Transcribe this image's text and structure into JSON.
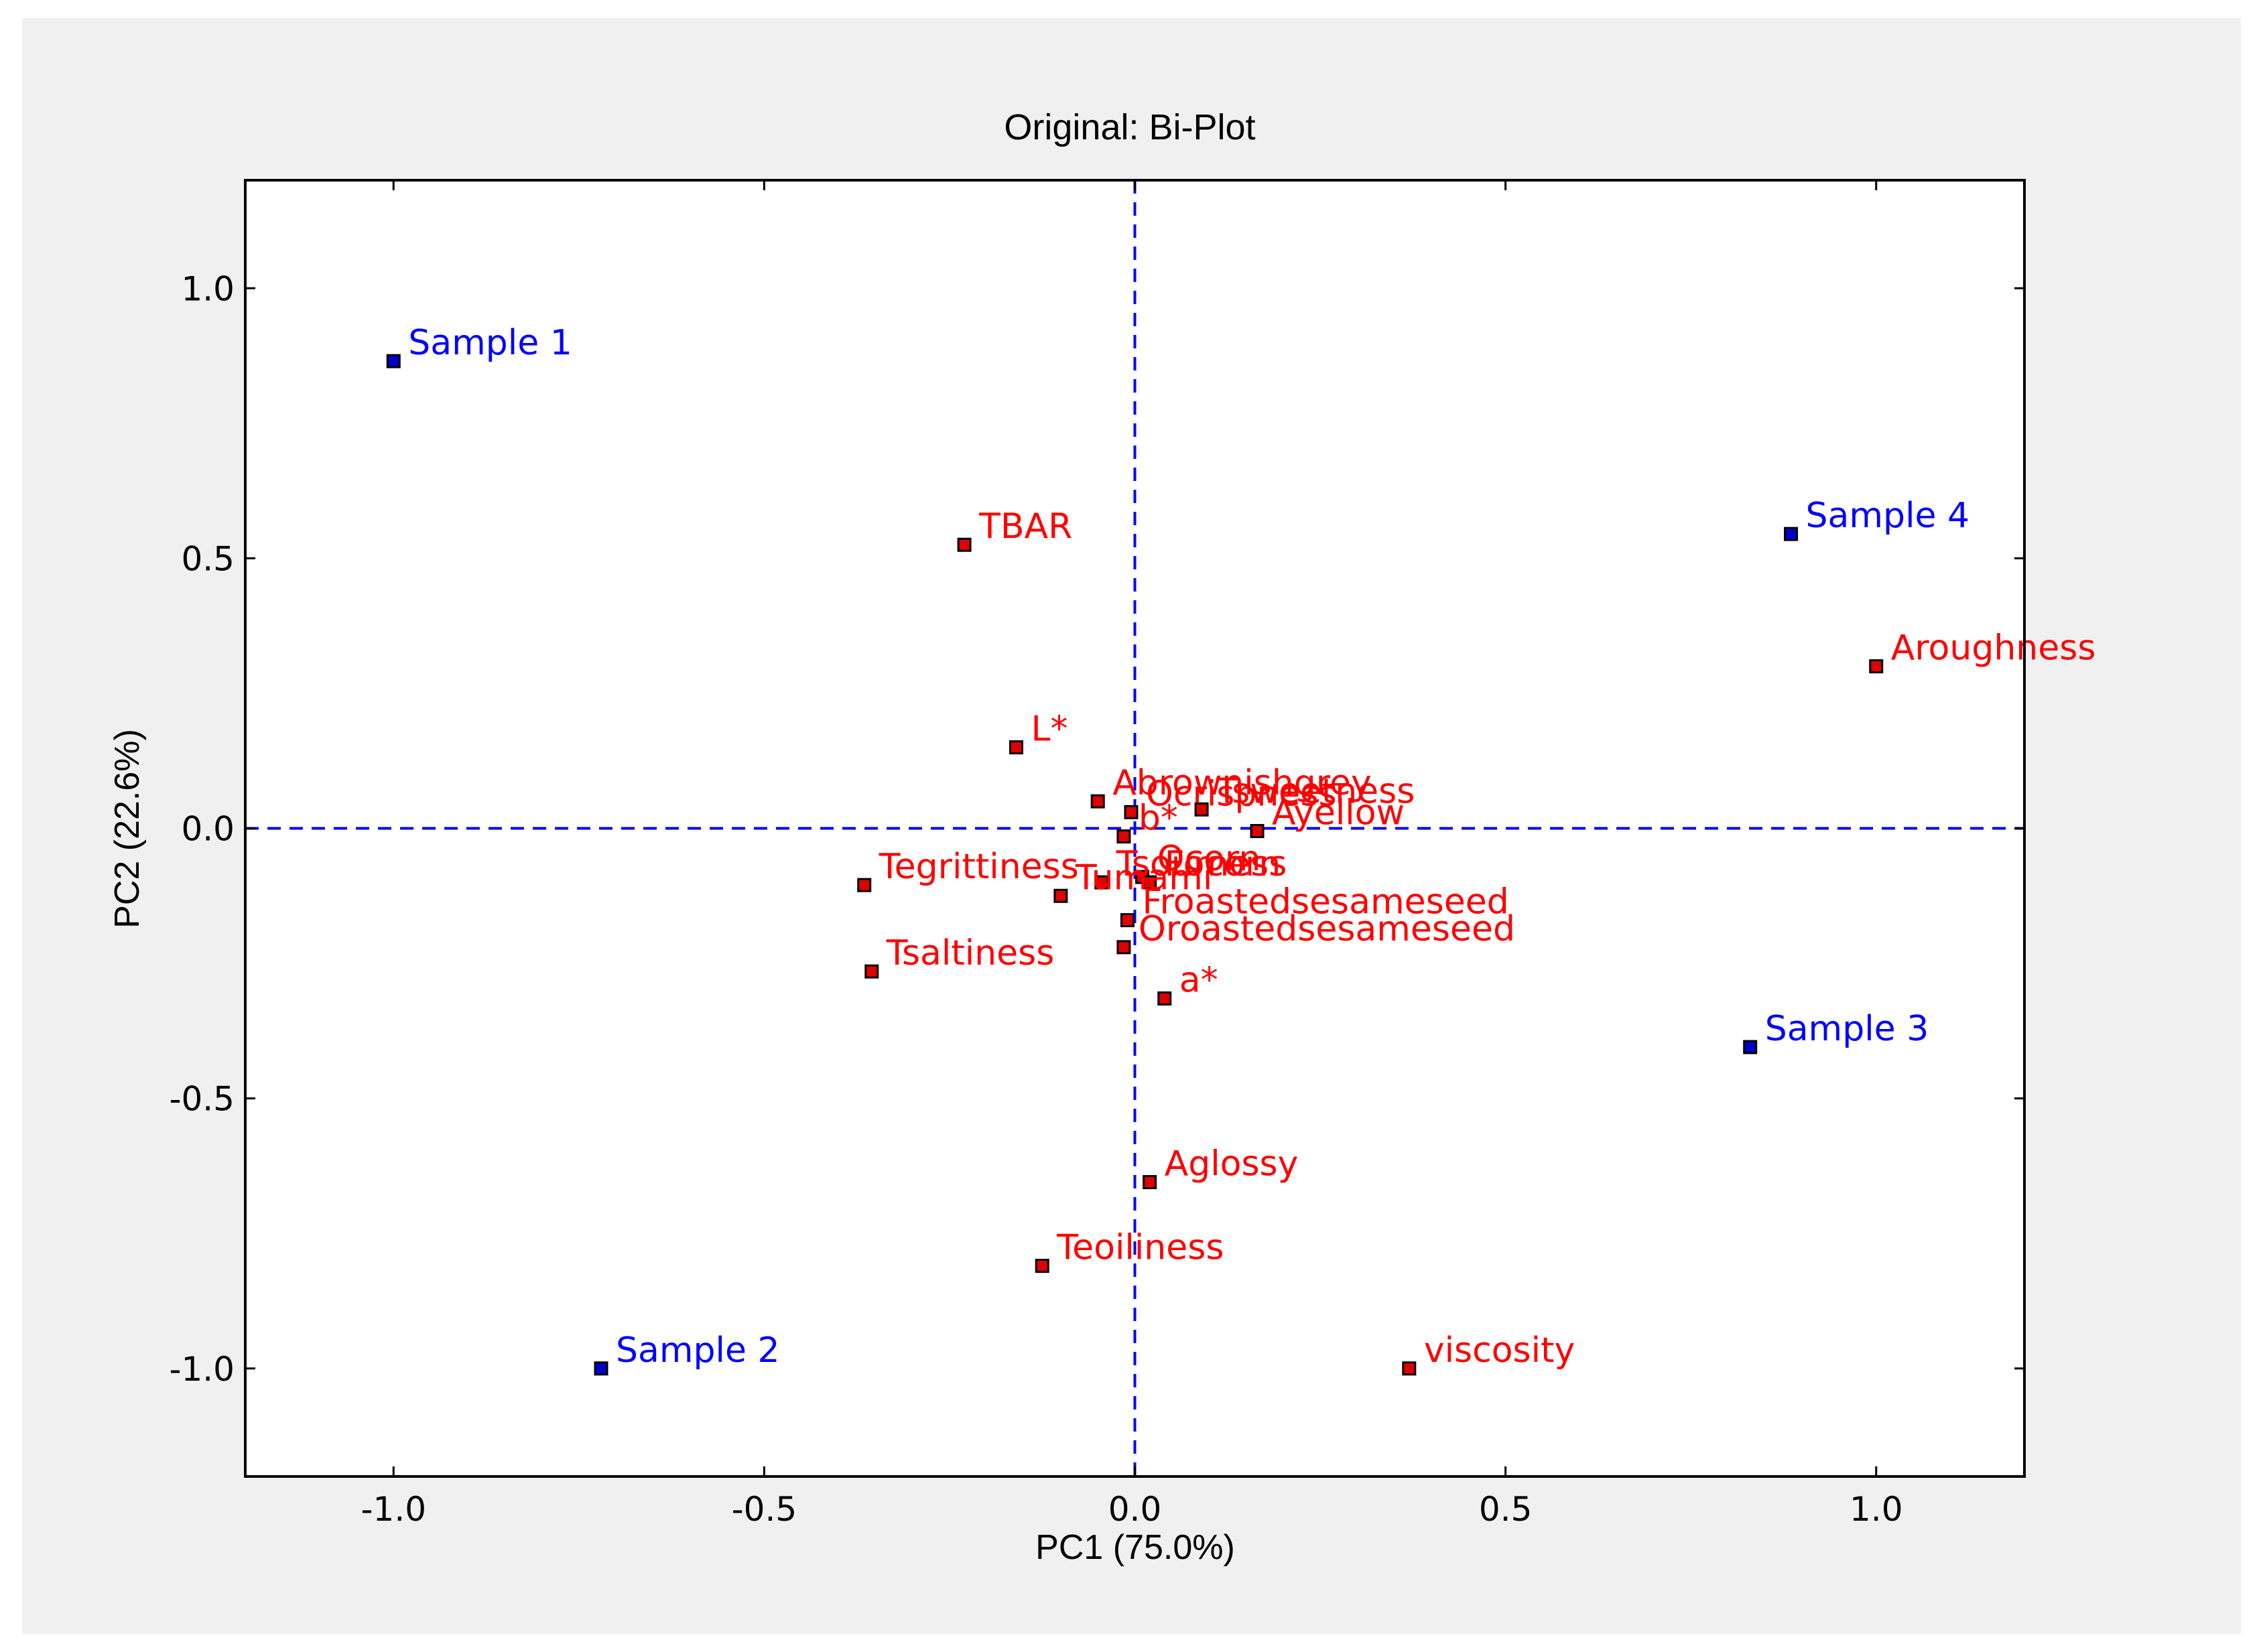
{
  "chart_data": {
    "type": "scatter",
    "title": "Original: Bi-Plot",
    "xlabel": "PC1 (75.0%)",
    "ylabel": "PC2 (22.6%)",
    "xlim": [
      -1.2,
      1.2
    ],
    "ylim": [
      -1.2,
      1.2
    ],
    "xticks": [
      -1.0,
      -0.5,
      0.0,
      0.5,
      1.0
    ],
    "yticks": [
      -1.0,
      -0.5,
      0.0,
      0.5,
      1.0
    ],
    "xtick_labels": [
      "-1.0",
      "-0.5",
      "0.0",
      "0.5",
      "1.0"
    ],
    "ytick_labels": [
      "-1.0",
      "-0.5",
      "0.0",
      "0.5",
      "1.0"
    ],
    "grid": false,
    "reference_lines": [
      {
        "orientation": "horizontal",
        "value": 0.0,
        "style": "dashed",
        "color": "#0000ff"
      },
      {
        "orientation": "vertical",
        "value": 0.0,
        "style": "dashed",
        "color": "#0000ff"
      }
    ],
    "series": [
      {
        "kind": "samples",
        "color": "#0000ff",
        "marker_fill": "#0000cc",
        "points": [
          {
            "label": "Sample 1",
            "x": -1.0,
            "y": 0.865
          },
          {
            "label": "Sample 2",
            "x": -0.72,
            "y": -1.0
          },
          {
            "label": "Sample 3",
            "x": 0.83,
            "y": -0.405
          },
          {
            "label": "Sample 4",
            "x": 0.885,
            "y": 0.545
          }
        ]
      },
      {
        "kind": "variables",
        "color": "#ff0000",
        "marker_fill": "#e00000",
        "points": [
          {
            "label": "TBAR",
            "x": -0.23,
            "y": 0.525
          },
          {
            "label": "Aroughness",
            "x": 1.0,
            "y": 0.3
          },
          {
            "label": "L*",
            "x": -0.16,
            "y": 0.15
          },
          {
            "label": "Abrownishgrey",
            "x": -0.05,
            "y": 0.05
          },
          {
            "label": "Ocrispness",
            "x": -0.005,
            "y": 0.03
          },
          {
            "label": "Tsweetness",
            "x": 0.09,
            "y": 0.035
          },
          {
            "label": "Ayellow",
            "x": 0.165,
            "y": -0.005
          },
          {
            "label": "b*",
            "x": -0.015,
            "y": -0.015
          },
          {
            "label": "Ocorn",
            "x": 0.01,
            "y": -0.09
          },
          {
            "label": "Focorn",
            "x": 0.02,
            "y": -0.1
          },
          {
            "label": "Tsourness",
            "x": -0.045,
            "y": -0.1
          },
          {
            "label": "Tegrittiness",
            "x": -0.365,
            "y": -0.105
          },
          {
            "label": "Tumami",
            "x": -0.1,
            "y": -0.125
          },
          {
            "label": "Froastedsesameseed",
            "x": -0.01,
            "y": -0.17
          },
          {
            "label": "Oroastedsesameseed",
            "x": -0.015,
            "y": -0.22
          },
          {
            "label": "Tsaltiness",
            "x": -0.355,
            "y": -0.265
          },
          {
            "label": "a*",
            "x": 0.04,
            "y": -0.315
          },
          {
            "label": "Aglossy",
            "x": 0.02,
            "y": -0.655
          },
          {
            "label": "Teoiliness",
            "x": -0.125,
            "y": -0.81
          },
          {
            "label": "viscosity",
            "x": 0.37,
            "y": -1.0
          }
        ]
      }
    ]
  }
}
